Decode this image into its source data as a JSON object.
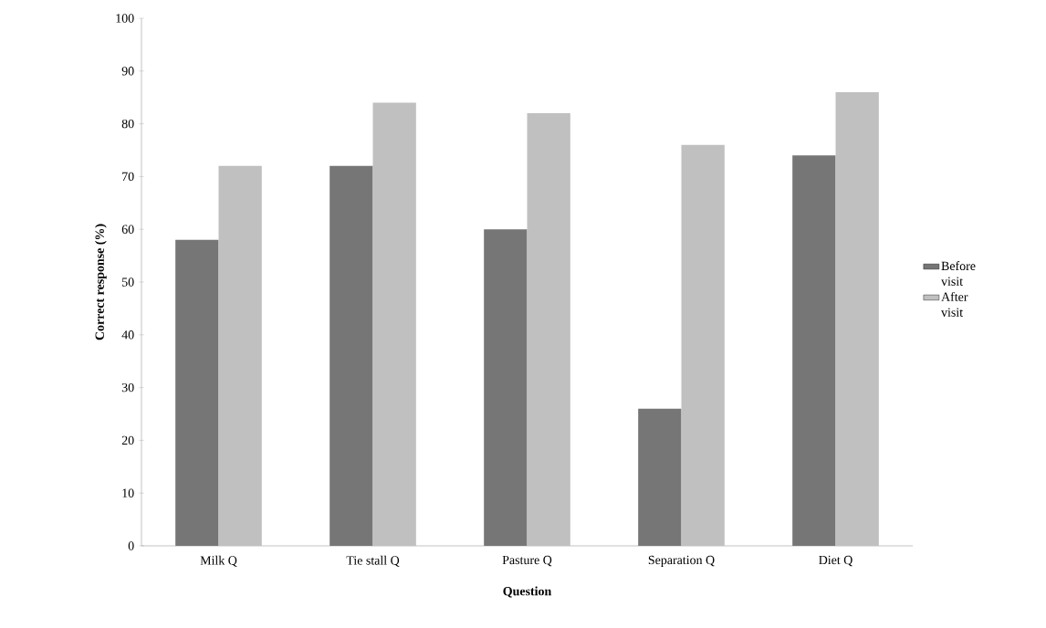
{
  "chart_data": {
    "type": "bar",
    "xlabel": "Question",
    "ylabel": "Correct response (%)",
    "categories": [
      "Milk Q",
      "Tie stall Q",
      "Pasture Q",
      "Separation Q",
      "Diet Q"
    ],
    "series": [
      {
        "name": "Before visit",
        "color": "#767676",
        "values": [
          58,
          72,
          60,
          26,
          74
        ]
      },
      {
        "name": "After visit",
        "color": "#c0c0c0",
        "values": [
          72,
          84,
          82,
          76,
          86
        ]
      }
    ],
    "ylim": [
      0,
      100
    ],
    "yticks": [
      0,
      10,
      20,
      30,
      40,
      50,
      60,
      70,
      80,
      90,
      100
    ],
    "grid": false,
    "legend": "right"
  }
}
